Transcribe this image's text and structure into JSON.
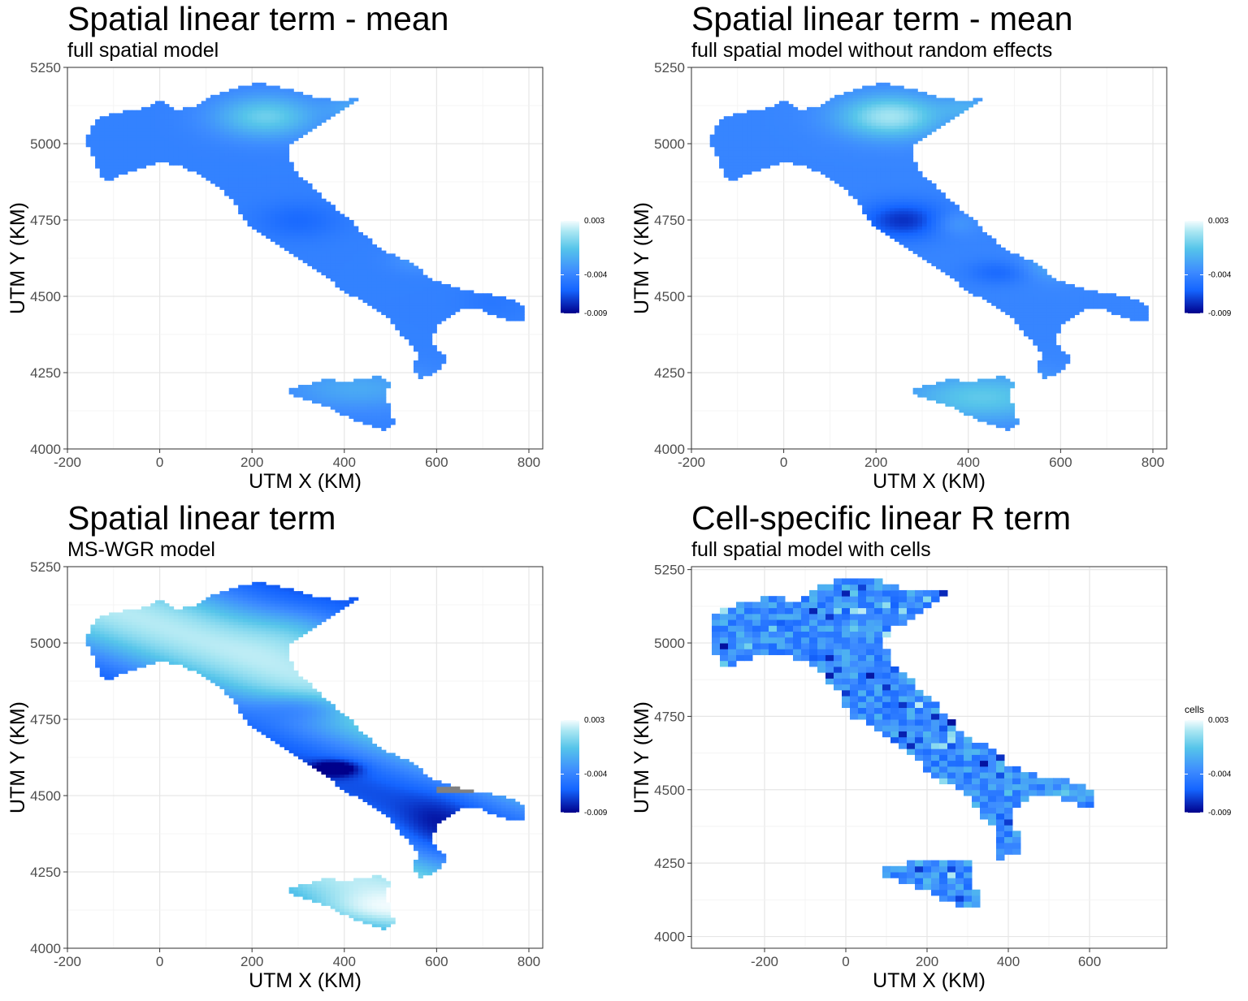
{
  "chart_data": [
    {
      "type": "heatmap",
      "title": "Spatial linear term - mean",
      "subtitle": "full spatial model",
      "xlabel": "UTM X (KM)",
      "ylabel": "UTM Y (KM)",
      "xlim": [
        -200,
        830
      ],
      "ylim": [
        4000,
        5250
      ],
      "xticks": [
        -200,
        0,
        200,
        400,
        600,
        800
      ],
      "yticks": [
        4000,
        4250,
        4500,
        4750,
        5000,
        5250
      ],
      "grid": true,
      "legend": {
        "title": "",
        "position": "right",
        "min": -0.009,
        "max": 0.003,
        "ticks": [
          0.003,
          -0.004,
          -0.009
        ],
        "tick_labels": [
          "0.003",
          "-0.004",
          "-0.009"
        ]
      },
      "colors": [
        "#00008b",
        "#1565ff",
        "#3d8bff",
        "#56c5ea",
        "#a8e6f2",
        "#f4fcfe"
      ],
      "field": "smooth"
    },
    {
      "type": "heatmap",
      "title": "Spatial linear term - mean",
      "subtitle": "full spatial model without random effects",
      "xlabel": "UTM X (KM)",
      "ylabel": "UTM Y (KM)",
      "xlim": [
        -200,
        830
      ],
      "ylim": [
        4000,
        5250
      ],
      "xticks": [
        -200,
        0,
        200,
        400,
        600,
        800
      ],
      "yticks": [
        4000,
        4250,
        4500,
        4750,
        5000,
        5250
      ],
      "grid": true,
      "legend": {
        "title": "",
        "position": "right",
        "min": -0.009,
        "max": 0.003,
        "ticks": [
          0.003,
          -0.004,
          -0.009
        ],
        "tick_labels": [
          "0.003",
          "-0.004",
          "-0.009"
        ]
      },
      "colors": [
        "#00008b",
        "#1565ff",
        "#3d8bff",
        "#56c5ea",
        "#a8e6f2",
        "#f4fcfe"
      ],
      "field": "smooth-strong"
    },
    {
      "type": "heatmap",
      "title": "Spatial linear term",
      "subtitle": "MS-WGR model",
      "xlabel": "UTM X (KM)",
      "ylabel": "UTM Y (KM)",
      "xlim": [
        -200,
        830
      ],
      "ylim": [
        4000,
        5250
      ],
      "xticks": [
        -200,
        0,
        200,
        400,
        600,
        800
      ],
      "yticks": [
        4000,
        4250,
        4500,
        4750,
        5000,
        5250
      ],
      "grid": true,
      "legend": {
        "title": "",
        "position": "right",
        "min": -0.009,
        "max": 0.003,
        "ticks": [
          0.003,
          -0.004,
          -0.009
        ],
        "tick_labels": [
          "0.003",
          "-0.004",
          "-0.009"
        ]
      },
      "colors": [
        "#00008b",
        "#1565ff",
        "#3d8bff",
        "#56c5ea",
        "#a8e6f2",
        "#f4fcfe"
      ],
      "field": "banded",
      "na_color": "#808080"
    },
    {
      "type": "heatmap",
      "title": "Cell-specific linear R term",
      "subtitle": "full spatial model with cells",
      "xlabel": "UTM X (KM)",
      "ylabel": "UTM Y (KM)",
      "xlim": [
        -380,
        790
      ],
      "ylim": [
        3960,
        5260
      ],
      "xticks": [
        -200,
        0,
        200,
        400,
        600
      ],
      "yticks": [
        4000,
        4250,
        4500,
        4750,
        5000,
        5250
      ],
      "grid": true,
      "legend": {
        "title": "cells",
        "position": "right",
        "min": -0.009,
        "max": 0.003,
        "ticks": [
          0.003,
          -0.004,
          -0.009
        ],
        "tick_labels": [
          "0.003",
          "-0.004",
          "-0.009"
        ]
      },
      "colors": [
        "#00008b",
        "#1565ff",
        "#3d8bff",
        "#56c5ea",
        "#a8e6f2",
        "#f4fcfe"
      ],
      "field": "cells",
      "na_color": "#808080"
    }
  ]
}
